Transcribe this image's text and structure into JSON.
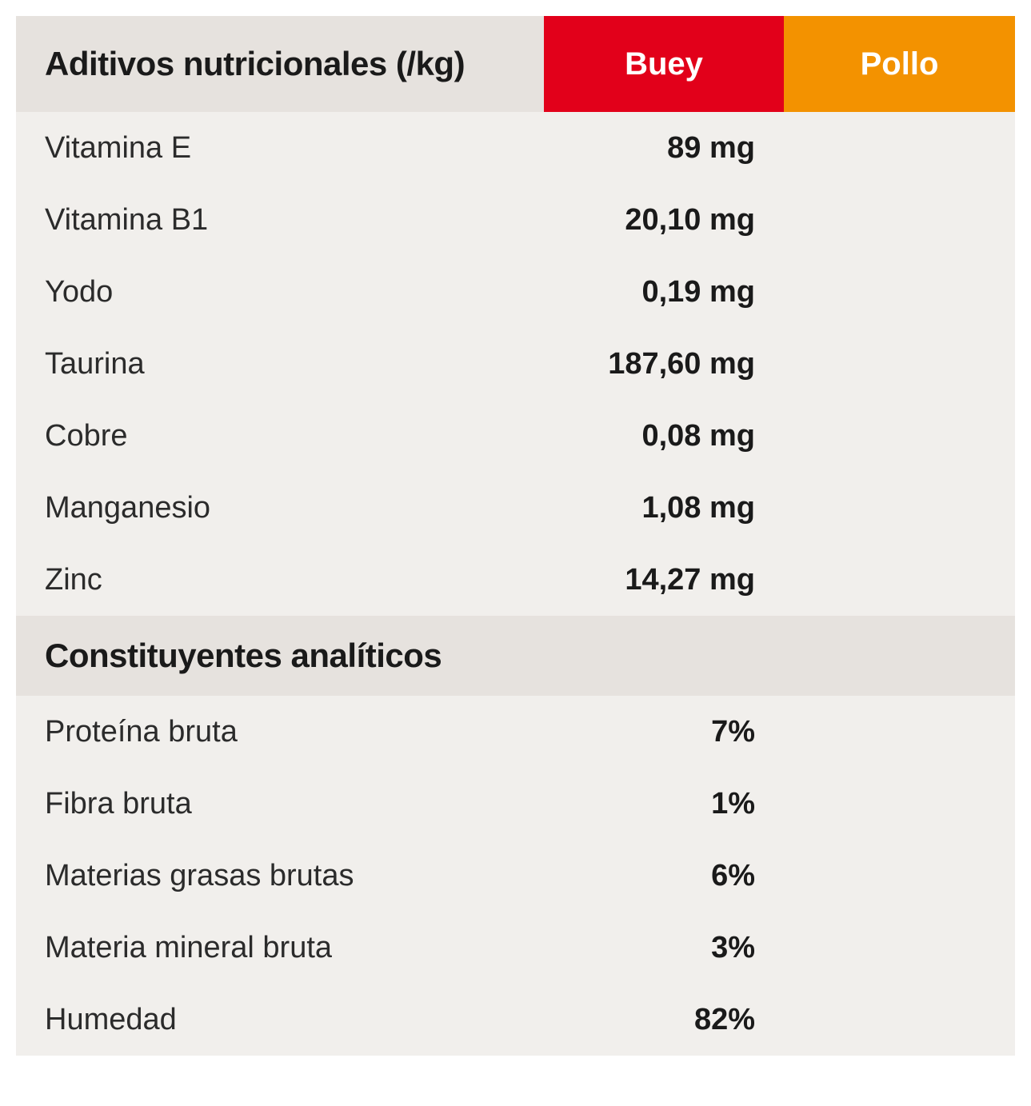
{
  "table": {
    "background_color": "#f1efec",
    "header_background_color": "#e6e2de",
    "label_text_color": "#2b2b2b",
    "value_text_color": "#1a1a1a",
    "label_font_size_pt": 29,
    "value_font_size_pt": 29,
    "header_font_size_pt": 32,
    "header": {
      "title": "Aditivos nutricionales (/kg)",
      "col1": {
        "label": "Buey",
        "bg_color": "#e2001a",
        "text_color": "#ffffff"
      },
      "col2": {
        "label": "Pollo",
        "bg_color": "#f39200",
        "text_color": "#ffffff"
      }
    },
    "additives": [
      {
        "label": "Vitamina E",
        "value": "89 mg"
      },
      {
        "label": "Vitamina B1",
        "value": "20,10 mg"
      },
      {
        "label": "Yodo",
        "value": "0,19 mg"
      },
      {
        "label": "Taurina",
        "value": "187,60 mg"
      },
      {
        "label": "Cobre",
        "value": "0,08 mg"
      },
      {
        "label": "Manganesio",
        "value": "1,08 mg"
      },
      {
        "label": "Zinc",
        "value": "14,27 mg"
      }
    ],
    "sub_header": {
      "title": "Constituyentes analíticos"
    },
    "constituents": [
      {
        "label": "Proteína  bruta",
        "value": "7%"
      },
      {
        "label": "Fibra bruta",
        "value": "1%"
      },
      {
        "label": "Materias grasas brutas",
        "value": "6%"
      },
      {
        "label": "Materia mineral bruta",
        "value": "3%"
      },
      {
        "label": "Humedad",
        "value": "82%"
      }
    ]
  }
}
